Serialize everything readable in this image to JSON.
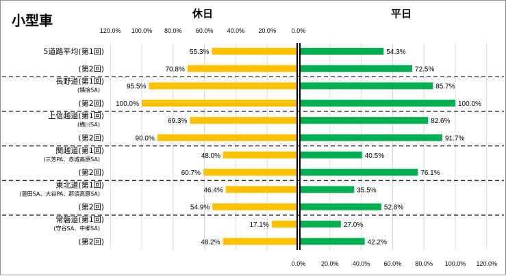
{
  "chart_data": {
    "type": "bar",
    "orientation": "horizontal-diverging",
    "title": "小型車",
    "left_panel_title": "休日",
    "right_panel_title": "平日",
    "x_tick_labels": [
      "0.0%",
      "20.0%",
      "40.0%",
      "60.0%",
      "80.0%",
      "100.0%",
      "120.0%"
    ],
    "xlim": [
      0,
      120
    ],
    "unit": "%",
    "groups": [
      {
        "name": "5道路平均(第1回)",
        "sub": "",
        "rows": [
          {
            "label": "5道路平均(第1回)",
            "holiday": 55.3,
            "weekday": 54.3,
            "holiday_label": "55.3%",
            "weekday_label": "54.3%"
          },
          {
            "label": "(第2回)",
            "holiday": 70.8,
            "weekday": 72.5,
            "holiday_label": "70.8%",
            "weekday_label": "72.5%"
          }
        ]
      },
      {
        "name": "長野道(第1回)",
        "sub": "(姨捨SA)",
        "rows": [
          {
            "label": "長野道(第1回)",
            "holiday": 95.5,
            "weekday": 85.7,
            "holiday_label": "95.5%",
            "weekday_label": "85.7%"
          },
          {
            "label": "(第2回)",
            "holiday": 100.0,
            "weekday": 100.0,
            "holiday_label": "100.0%",
            "weekday_label": "100.0%"
          }
        ]
      },
      {
        "name": "上信越道(第1回)",
        "sub": "(横川SA)",
        "rows": [
          {
            "label": "上信越道(第1回)",
            "holiday": 69.3,
            "weekday": 82.6,
            "holiday_label": "69.3%",
            "weekday_label": "82.6%"
          },
          {
            "label": "(第2回)",
            "holiday": 90.0,
            "weekday": 91.7,
            "holiday_label": "90.0%",
            "weekday_label": "91.7%"
          }
        ]
      },
      {
        "name": "関越道(第1回)",
        "sub": "(三芳PA、赤城高原SA)",
        "rows": [
          {
            "label": "関越道(第1回)",
            "holiday": 48.0,
            "weekday": 40.5,
            "holiday_label": "48.0%",
            "weekday_label": "40.5%"
          },
          {
            "label": "(第2回)",
            "holiday": 60.7,
            "weekday": 76.1,
            "holiday_label": "60.7%",
            "weekday_label": "76.1%"
          }
        ]
      },
      {
        "name": "東北道(第1回)",
        "sub": "(蓮田SA、大谷PA、那須高原SA)",
        "rows": [
          {
            "label": "東北道(第1回)",
            "holiday": 46.4,
            "weekday": 35.5,
            "holiday_label": "46.4%",
            "weekday_label": "35.5%"
          },
          {
            "label": "(第2回)",
            "holiday": 54.9,
            "weekday": 52.8,
            "holiday_label": "54.9%",
            "weekday_label": "52.8%"
          }
        ]
      },
      {
        "name": "常磐道(第1回)",
        "sub": "(守谷SA、中郷SA)",
        "rows": [
          {
            "label": "常磐道(第1回)",
            "holiday": 17.1,
            "weekday": 27.0,
            "holiday_label": "17.1%",
            "weekday_label": "27.0%"
          },
          {
            "label": "(第2回)",
            "holiday": 48.2,
            "weekday": 42.2,
            "holiday_label": "48.2%",
            "weekday_label": "42.2%"
          }
        ]
      }
    ],
    "colors": {
      "holiday": "#ffc000",
      "weekday": "#00b050",
      "grid": "#d9d9d9",
      "separator": "#000000"
    },
    "grid": true
  }
}
